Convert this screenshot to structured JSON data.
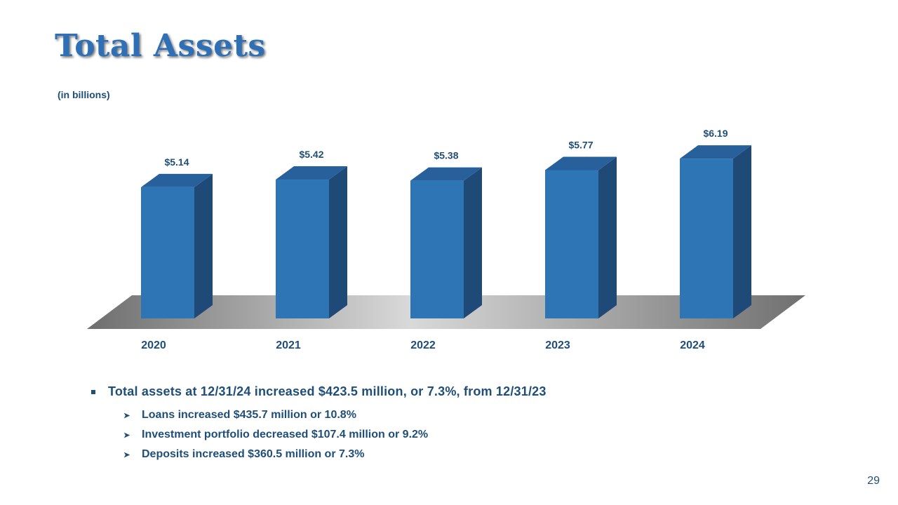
{
  "slide": {
    "title": "Total Assets",
    "subtitle": "(in billions)",
    "page_number": "29",
    "bullet_main": "Total assets at 12/31/24 increased $423.5 million,  or 7.3%, from 12/31/23",
    "sub_bullets": [
      "Loans increased $435.7 million or 10.8%",
      "Investment portfolio decreased $107.4 million or 9.2%",
      "Deposits increased $360.5 million or 7.3%"
    ]
  },
  "chart_data": {
    "type": "bar",
    "title": "Total Assets",
    "subtitle": "(in billions)",
    "categories": [
      "2020",
      "2021",
      "2022",
      "2023",
      "2024"
    ],
    "values": [
      5.14,
      5.42,
      5.38,
      5.77,
      6.19
    ],
    "data_labels": [
      "$5.14",
      "$5.42",
      "$5.38",
      "$5.77",
      "$6.19"
    ],
    "xlabel": "",
    "ylabel": "",
    "grid": false,
    "legend": "none"
  },
  "colors": {
    "bar_front": "#2e75b6",
    "bar_side": "#1f4a78",
    "bar_top": "#27609a",
    "text_dark": "#1f4e79",
    "title": "#2f6fb5"
  }
}
